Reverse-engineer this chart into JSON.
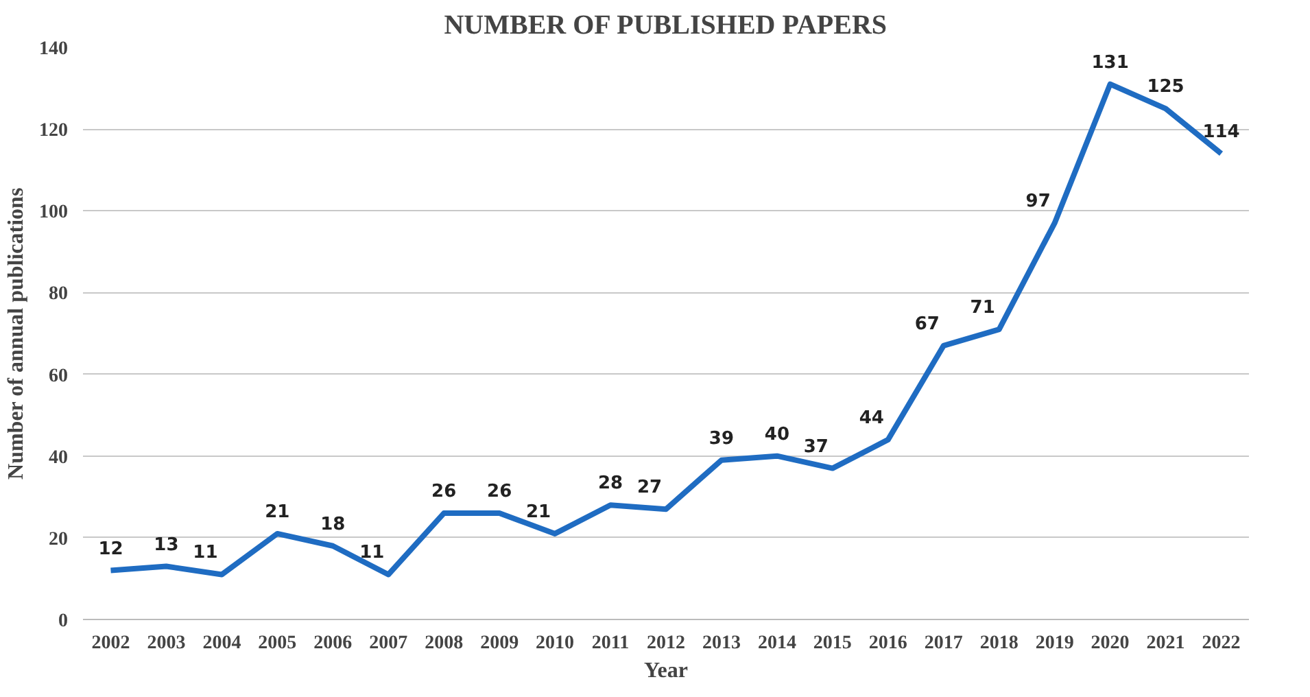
{
  "chart_data": {
    "type": "line",
    "title": "NUMBER OF PUBLISHED PAPERS",
    "xlabel": "Year",
    "ylabel": "Number of annual publications",
    "categories": [
      "2002",
      "2003",
      "2004",
      "2005",
      "2006",
      "2007",
      "2008",
      "2009",
      "2010",
      "2011",
      "2012",
      "2013",
      "2014",
      "2015",
      "2016",
      "2017",
      "2018",
      "2019",
      "2020",
      "2021",
      "2022"
    ],
    "series": [
      {
        "color": "#1f6cc2",
        "values": [
          12,
          13,
          11,
          21,
          18,
          11,
          26,
          26,
          21,
          28,
          27,
          39,
          40,
          37,
          44,
          67,
          71,
          97,
          131,
          125,
          114
        ]
      }
    ],
    "ylim": [
      0,
      140
    ],
    "yticks": [
      0,
      20,
      40,
      60,
      80,
      100,
      120,
      140
    ],
    "grid": "y",
    "marker": "none",
    "line_style": "solid",
    "data_labels": true
  }
}
